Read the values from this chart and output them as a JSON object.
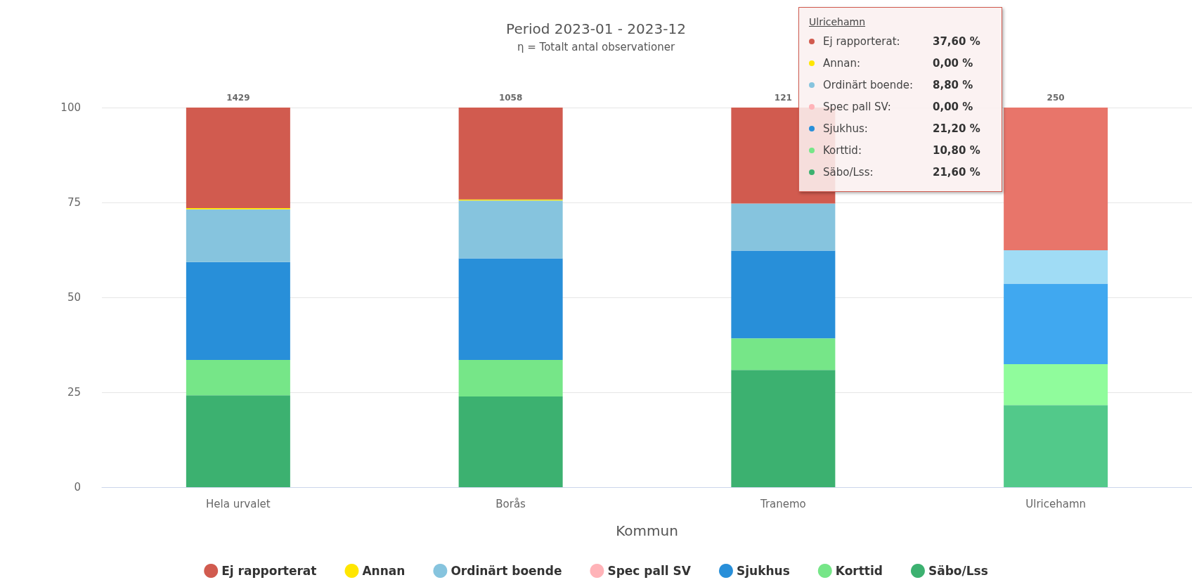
{
  "chart_data": {
    "type": "bar",
    "title": "Period 2023-01 - 2023-12",
    "subtitle": "η = Totalt antal observationer",
    "xlabel": "Kommun",
    "categories": [
      "Hela urvalet",
      "Borås",
      "Tranemo",
      "Ulricehamn"
    ],
    "stacked": true,
    "ylim": [
      0,
      100
    ],
    "yticks": [
      0,
      25,
      50,
      75,
      100
    ],
    "grid": "y",
    "legend": "bottom",
    "series": [
      {
        "name": "Säbo/Lss",
        "color": "#3cb170",
        "colors": [
          "#3cb170",
          "#3cb170",
          "#3cb170",
          "#52c98a"
        ],
        "values": [
          24.2,
          23.9,
          30.9,
          21.6
        ]
      },
      {
        "name": "Korttid",
        "color": "#76e688",
        "colors": [
          "#76e688",
          "#76e688",
          "#76e688",
          "#90fc9c"
        ],
        "values": [
          9.3,
          9.6,
          8.3,
          10.8
        ]
      },
      {
        "name": "Sjukhus",
        "color": "#288fd9",
        "colors": [
          "#288fd9",
          "#288fd9",
          "#288fd9",
          "#40a8f0"
        ],
        "values": [
          25.8,
          26.8,
          23.1,
          21.2
        ]
      },
      {
        "name": "Spec pall SV",
        "color": "#ffb3b8",
        "values": [
          0,
          0,
          0,
          0
        ]
      },
      {
        "name": "Ordinärt boende",
        "color": "#86c4de",
        "colors": [
          "#86c4de",
          "#86c4de",
          "#86c4de",
          "#a0dcf5"
        ],
        "values": [
          13.9,
          15.2,
          12.4,
          8.8
        ]
      },
      {
        "name": "Annan",
        "color": "#ffe600",
        "values": [
          0.3,
          0.3,
          0,
          0
        ]
      },
      {
        "name": "Ej rapporterat",
        "color": "#d15b4f",
        "colors": [
          "#d15b4f",
          "#d15b4f",
          "#d15b4f",
          "#e8756a"
        ],
        "values": [
          26.5,
          24.2,
          25.3,
          37.6
        ]
      }
    ],
    "annotations": [
      {
        "text": "1429",
        "x": "Hela urvalet",
        "y": 100
      },
      {
        "text": "1058",
        "x": "Borås",
        "y": 100
      },
      {
        "text": "121",
        "x": "Tranemo",
        "y": 100
      },
      {
        "text": "250",
        "x": "Ulricehamn",
        "y": 100
      },
      "Ulricehamn",
      "Ej rapporterat:",
      "37,60 %",
      "Annan:",
      "0,00 %",
      "Ordinärt boende:",
      "8,80 %",
      "Spec pall SV:",
      "0,00 %",
      "Sjukhus:",
      "21,20 %",
      "Korttid:",
      "10,80 %",
      "Säbo/Lss:",
      "21,60 %"
    ]
  }
}
